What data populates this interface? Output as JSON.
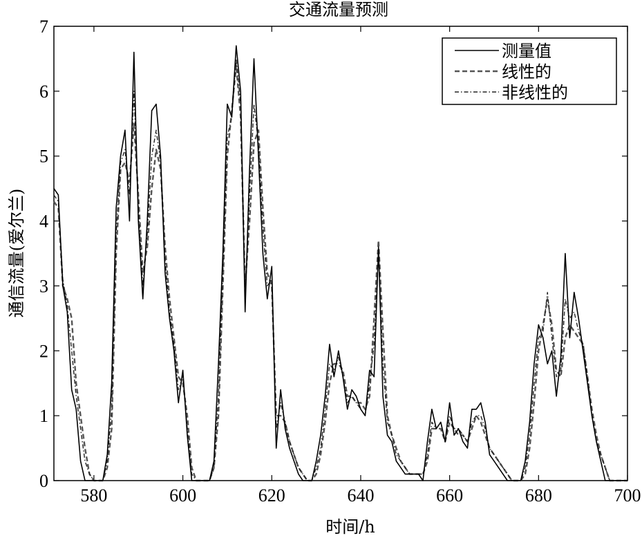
{
  "chart_data": {
    "type": "line",
    "title": "交通流量预测",
    "xlabel": "时间/h",
    "ylabel": "通信流量(爱尔兰)",
    "xlim": [
      571,
      700
    ],
    "ylim": [
      0,
      7
    ],
    "xticks": [
      580,
      600,
      620,
      640,
      660,
      680,
      700
    ],
    "yticks": [
      0,
      1,
      2,
      3,
      4,
      5,
      6,
      7
    ],
    "grid": false,
    "legend_position": "top-right",
    "series": [
      {
        "name": "测量值",
        "style": "solid",
        "color": "#000000",
        "x": [
          571,
          572,
          573,
          574,
          575,
          576,
          577,
          578,
          579,
          580,
          581,
          582,
          583,
          584,
          585,
          586,
          587,
          588,
          589,
          590,
          591,
          592,
          593,
          594,
          595,
          596,
          597,
          598,
          599,
          600,
          601,
          602,
          603,
          604,
          605,
          606,
          607,
          608,
          609,
          610,
          611,
          612,
          613,
          614,
          615,
          616,
          617,
          618,
          619,
          620,
          621,
          622,
          623,
          624,
          625,
          626,
          627,
          628,
          629,
          630,
          631,
          632,
          633,
          634,
          635,
          636,
          637,
          638,
          639,
          640,
          641,
          642,
          643,
          644,
          645,
          646,
          647,
          648,
          649,
          650,
          651,
          652,
          653,
          654,
          655,
          656,
          657,
          658,
          659,
          660,
          661,
          662,
          663,
          664,
          665,
          666,
          667,
          668,
          669,
          670,
          671,
          672,
          673,
          674,
          675,
          676,
          677,
          678,
          679,
          680,
          681,
          682,
          683,
          684,
          685,
          686,
          687,
          688,
          689,
          690,
          691,
          692,
          693,
          694,
          695,
          696,
          697,
          698,
          699,
          700
        ],
        "values": [
          4.5,
          4.4,
          3.0,
          2.6,
          1.4,
          1.1,
          0.3,
          0.0,
          0.0,
          0.0,
          0.0,
          0.0,
          0.4,
          1.5,
          4.2,
          5.0,
          5.4,
          4.0,
          6.6,
          4.0,
          2.8,
          4.0,
          5.7,
          5.8,
          5.0,
          3.2,
          2.5,
          2.0,
          1.2,
          1.7,
          0.7,
          0.0,
          0.0,
          0.0,
          0.0,
          0.0,
          0.3,
          1.8,
          3.5,
          5.8,
          5.6,
          6.7,
          6.0,
          2.6,
          4.8,
          6.5,
          5.0,
          3.5,
          2.8,
          3.3,
          0.5,
          1.4,
          0.8,
          0.5,
          0.3,
          0.1,
          0.0,
          0.0,
          0.0,
          0.3,
          0.7,
          1.3,
          2.1,
          1.6,
          2.0,
          1.6,
          1.1,
          1.4,
          1.3,
          1.1,
          1.0,
          1.7,
          1.6,
          3.6,
          1.3,
          0.7,
          0.6,
          0.3,
          0.2,
          0.1,
          0.1,
          0.1,
          0.1,
          0.0,
          0.6,
          1.1,
          0.8,
          0.9,
          0.6,
          1.2,
          0.7,
          0.8,
          0.6,
          0.5,
          1.1,
          1.1,
          1.2,
          0.9,
          0.4,
          0.3,
          0.2,
          0.1,
          0.0,
          0.0,
          0.0,
          0.0,
          0.3,
          0.9,
          1.8,
          2.4,
          2.2,
          1.8,
          2.0,
          1.3,
          1.9,
          3.5,
          2.2,
          2.9,
          2.5,
          2.0,
          1.5,
          1.0,
          0.6,
          0.3,
          0.0,
          0.0,
          0.0,
          0.0,
          0.0,
          0.0
        ]
      },
      {
        "name": "线性的",
        "style": "dashed",
        "color": "#555555",
        "x": [
          571,
          572,
          573,
          574,
          575,
          576,
          577,
          578,
          579,
          580,
          581,
          582,
          583,
          584,
          585,
          586,
          587,
          588,
          589,
          590,
          591,
          592,
          593,
          594,
          595,
          596,
          597,
          598,
          599,
          600,
          601,
          602,
          603,
          604,
          605,
          606,
          607,
          608,
          609,
          610,
          611,
          612,
          613,
          614,
          615,
          616,
          617,
          618,
          619,
          620,
          621,
          622,
          623,
          624,
          625,
          626,
          627,
          628,
          629,
          630,
          631,
          632,
          633,
          634,
          635,
          636,
          637,
          638,
          639,
          640,
          641,
          642,
          643,
          644,
          645,
          646,
          647,
          648,
          649,
          650,
          651,
          652,
          653,
          654,
          655,
          656,
          657,
          658,
          659,
          660,
          661,
          662,
          663,
          664,
          665,
          666,
          667,
          668,
          669,
          670,
          671,
          672,
          673,
          674,
          675,
          676,
          677,
          678,
          679,
          680,
          681,
          682,
          683,
          684,
          685,
          686,
          687,
          688,
          689,
          690,
          691,
          692,
          693,
          694,
          695,
          696,
          697,
          698,
          699,
          700
        ],
        "values": [
          4.3,
          4.2,
          3.0,
          2.8,
          2.5,
          1.5,
          1.0,
          0.5,
          0.1,
          0.0,
          0.0,
          0.0,
          0.2,
          0.8,
          3.5,
          4.8,
          4.9,
          4.6,
          5.5,
          4.4,
          3.2,
          3.6,
          4.5,
          5.1,
          4.8,
          3.6,
          2.8,
          2.2,
          1.6,
          1.5,
          1.0,
          0.2,
          0.0,
          0.0,
          0.0,
          0.0,
          0.2,
          1.0,
          3.0,
          5.0,
          5.7,
          6.4,
          5.6,
          3.0,
          4.0,
          5.2,
          5.4,
          4.2,
          3.2,
          3.0,
          1.0,
          1.0,
          0.9,
          0.6,
          0.4,
          0.2,
          0.1,
          0.0,
          0.0,
          0.1,
          0.4,
          0.9,
          1.5,
          1.8,
          1.8,
          1.7,
          1.3,
          1.3,
          1.2,
          1.2,
          1.1,
          1.3,
          2.5,
          3.7,
          2.3,
          1.0,
          0.7,
          0.5,
          0.3,
          0.2,
          0.1,
          0.1,
          0.1,
          0.1,
          0.3,
          0.8,
          0.8,
          0.8,
          0.6,
          0.9,
          0.8,
          0.7,
          0.7,
          0.6,
          0.8,
          1.0,
          0.9,
          0.7,
          0.5,
          0.4,
          0.3,
          0.2,
          0.1,
          0.0,
          0.0,
          0.0,
          0.1,
          0.5,
          1.2,
          2.0,
          2.4,
          2.8,
          2.4,
          1.7,
          1.6,
          2.2,
          2.4,
          2.3,
          2.2,
          2.1,
          1.6,
          1.1,
          0.7,
          0.4,
          0.2,
          0.0,
          0.0,
          0.0,
          0.0,
          0.0
        ]
      },
      {
        "name": "非线性的",
        "style": "dashdot",
        "color": "#222222",
        "x": [
          571,
          572,
          573,
          574,
          575,
          576,
          577,
          578,
          579,
          580,
          581,
          582,
          583,
          584,
          585,
          586,
          587,
          588,
          589,
          590,
          591,
          592,
          593,
          594,
          595,
          596,
          597,
          598,
          599,
          600,
          601,
          602,
          603,
          604,
          605,
          606,
          607,
          608,
          609,
          610,
          611,
          612,
          613,
          614,
          615,
          616,
          617,
          618,
          619,
          620,
          621,
          622,
          623,
          624,
          625,
          626,
          627,
          628,
          629,
          630,
          631,
          632,
          633,
          634,
          635,
          636,
          637,
          638,
          639,
          640,
          641,
          642,
          643,
          644,
          645,
          646,
          647,
          648,
          649,
          650,
          651,
          652,
          653,
          654,
          655,
          656,
          657,
          658,
          659,
          660,
          661,
          662,
          663,
          664,
          665,
          666,
          667,
          668,
          669,
          670,
          671,
          672,
          673,
          674,
          675,
          676,
          677,
          678,
          679,
          680,
          681,
          682,
          683,
          684,
          685,
          686,
          687,
          688,
          689,
          690,
          691,
          692,
          693,
          694,
          695,
          696,
          697,
          698,
          699,
          700
        ],
        "values": [
          4.4,
          4.3,
          3.1,
          2.7,
          2.0,
          1.3,
          0.8,
          0.3,
          0.1,
          0.0,
          0.0,
          0.0,
          0.3,
          1.1,
          3.8,
          4.9,
          5.1,
          4.4,
          6.0,
          4.2,
          3.0,
          3.8,
          5.0,
          5.4,
          4.9,
          3.4,
          2.6,
          2.1,
          1.4,
          1.6,
          0.8,
          0.1,
          0.0,
          0.0,
          0.0,
          0.0,
          0.2,
          1.3,
          3.2,
          5.3,
          5.6,
          6.5,
          5.8,
          2.8,
          4.4,
          5.8,
          5.2,
          3.9,
          3.0,
          3.1,
          0.8,
          1.2,
          0.9,
          0.6,
          0.4,
          0.2,
          0.1,
          0.0,
          0.0,
          0.2,
          0.5,
          1.1,
          1.8,
          1.7,
          1.9,
          1.6,
          1.2,
          1.3,
          1.2,
          1.1,
          1.0,
          1.5,
          2.1,
          3.5,
          1.8,
          0.9,
          0.7,
          0.4,
          0.3,
          0.2,
          0.1,
          0.1,
          0.1,
          0.1,
          0.4,
          0.9,
          0.8,
          0.9,
          0.6,
          1.0,
          0.8,
          0.8,
          0.7,
          0.6,
          0.9,
          1.0,
          1.0,
          0.8,
          0.5,
          0.4,
          0.3,
          0.2,
          0.1,
          0.0,
          0.0,
          0.0,
          0.2,
          0.7,
          1.5,
          2.2,
          2.3,
          2.9,
          2.2,
          1.6,
          1.7,
          2.8,
          2.5,
          2.6,
          2.3,
          2.1,
          1.6,
          1.0,
          0.6,
          0.4,
          0.2,
          0.0,
          0.0,
          0.0,
          0.0,
          0.0
        ]
      }
    ]
  }
}
